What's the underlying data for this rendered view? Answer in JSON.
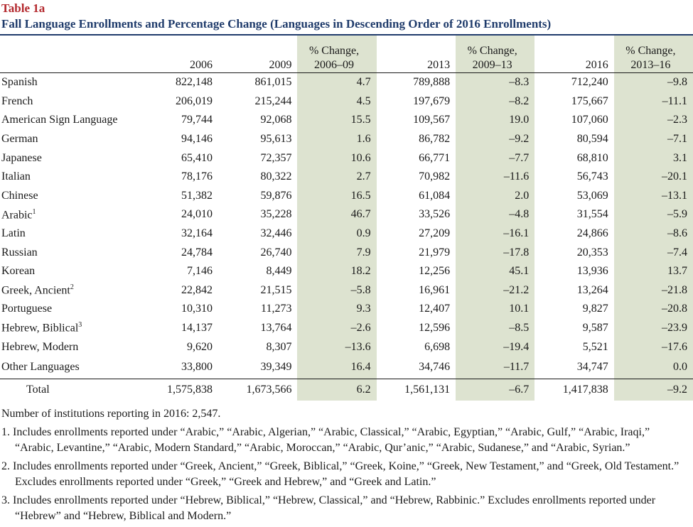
{
  "label": "Table 1a",
  "title": "Fall Language Enrollments and Percentage Change (Languages in Descending Order of 2016 Enrollments)",
  "columns": {
    "y2006": "2006",
    "y2009": "2009",
    "pct1_line1": "% Change,",
    "pct1_line2": "2006–09",
    "y2013": "2013",
    "pct2_line1": "% Change,",
    "pct2_line2": "2009–13",
    "y2016": "2016",
    "pct3_line1": "% Change,",
    "pct3_line2": "2013–16"
  },
  "rows": [
    {
      "language": "Spanish",
      "sup": "",
      "y2006": "822,148",
      "y2009": "861,015",
      "pct1": "4.7",
      "y2013": "789,888",
      "pct2": "–8.3",
      "y2016": "712,240",
      "pct3": "–9.8"
    },
    {
      "language": "French",
      "sup": "",
      "y2006": "206,019",
      "y2009": "215,244",
      "pct1": "4.5",
      "y2013": "197,679",
      "pct2": "–8.2",
      "y2016": "175,667",
      "pct3": "–11.1"
    },
    {
      "language": "American Sign Language",
      "sup": "",
      "y2006": "79,744",
      "y2009": "92,068",
      "pct1": "15.5",
      "y2013": "109,567",
      "pct2": "19.0",
      "y2016": "107,060",
      "pct3": "–2.3"
    },
    {
      "language": "German",
      "sup": "",
      "y2006": "94,146",
      "y2009": "95,613",
      "pct1": "1.6",
      "y2013": "86,782",
      "pct2": "–9.2",
      "y2016": "80,594",
      "pct3": "–7.1"
    },
    {
      "language": "Japanese",
      "sup": "",
      "y2006": "65,410",
      "y2009": "72,357",
      "pct1": "10.6",
      "y2013": "66,771",
      "pct2": "–7.7",
      "y2016": "68,810",
      "pct3": "3.1"
    },
    {
      "language": "Italian",
      "sup": "",
      "y2006": "78,176",
      "y2009": "80,322",
      "pct1": "2.7",
      "y2013": "70,982",
      "pct2": "–11.6",
      "y2016": "56,743",
      "pct3": "–20.1"
    },
    {
      "language": "Chinese",
      "sup": "",
      "y2006": "51,382",
      "y2009": "59,876",
      "pct1": "16.5",
      "y2013": "61,084",
      "pct2": "2.0",
      "y2016": "53,069",
      "pct3": "–13.1"
    },
    {
      "language": "Arabic",
      "sup": "1",
      "y2006": "24,010",
      "y2009": "35,228",
      "pct1": "46.7",
      "y2013": "33,526",
      "pct2": "–4.8",
      "y2016": "31,554",
      "pct3": "–5.9"
    },
    {
      "language": "Latin",
      "sup": "",
      "y2006": "32,164",
      "y2009": "32,446",
      "pct1": "0.9",
      "y2013": "27,209",
      "pct2": "–16.1",
      "y2016": "24,866",
      "pct3": "–8.6"
    },
    {
      "language": "Russian",
      "sup": "",
      "y2006": "24,784",
      "y2009": "26,740",
      "pct1": "7.9",
      "y2013": "21,979",
      "pct2": "–17.8",
      "y2016": "20,353",
      "pct3": "–7.4"
    },
    {
      "language": "Korean",
      "sup": "",
      "y2006": "7,146",
      "y2009": "8,449",
      "pct1": "18.2",
      "y2013": "12,256",
      "pct2": "45.1",
      "y2016": "13,936",
      "pct3": "13.7"
    },
    {
      "language": "Greek, Ancient",
      "sup": "2",
      "y2006": "22,842",
      "y2009": "21,515",
      "pct1": "–5.8",
      "y2013": "16,961",
      "pct2": "–21.2",
      "y2016": "13,264",
      "pct3": "–21.8"
    },
    {
      "language": "Portuguese",
      "sup": "",
      "y2006": "10,310",
      "y2009": "11,273",
      "pct1": "9.3",
      "y2013": "12,407",
      "pct2": "10.1",
      "y2016": "9,827",
      "pct3": "–20.8"
    },
    {
      "language": "Hebrew, Biblical",
      "sup": "3",
      "y2006": "14,137",
      "y2009": "13,764",
      "pct1": "–2.6",
      "y2013": "12,596",
      "pct2": "–8.5",
      "y2016": "9,587",
      "pct3": "–23.9"
    },
    {
      "language": "Hebrew, Modern",
      "sup": "",
      "y2006": "9,620",
      "y2009": "8,307",
      "pct1": "–13.6",
      "y2013": "6,698",
      "pct2": "–19.4",
      "y2016": "5,521",
      "pct3": "–17.6"
    },
    {
      "language": "Other Languages",
      "sup": "",
      "y2006": "33,800",
      "y2009": "39,349",
      "pct1": "16.4",
      "y2013": "34,746",
      "pct2": "–11.7",
      "y2016": "34,747",
      "pct3": "0.0"
    }
  ],
  "total": {
    "language": "Total",
    "y2006": "1,575,838",
    "y2009": "1,673,566",
    "pct1": "6.2",
    "y2013": "1,561,131",
    "pct2": "–6.7",
    "y2016": "1,417,838",
    "pct3": "–9.2"
  },
  "notes": {
    "institutions": "Number of institutions reporting in 2016: 2,547.",
    "footnotes": [
      "1. Includes enrollments reported under “Arabic,” “Arabic, Algerian,” “Arabic, Classical,” “Arabic, Egyptian,” “Arabic, Gulf,” “Arabic, Iraqi,” “Arabic, Levantine,” “Arabic, Modern Standard,” “Arabic, Moroccan,” “Arabic, Qur’anic,” “Arabic, Sudanese,” and “Arabic, Syrian.”",
      "2. Includes enrollments reported under “Greek, Ancient,” “Greek, Biblical,” “Greek, Koine,” “Greek, New Testament,” and “Greek, Old Testament.” Excludes enrollments reported under “Greek,” “Greek and Hebrew,” and “Greek and Latin.”",
      "3. Includes enrollments reported under “Hebrew, Biblical,” “Hebrew, Classical,” and “Hebrew, Rabbinic.” Excludes enrollments reported under “Hebrew” and “Hebrew, Biblical and Modern.”"
    ]
  }
}
